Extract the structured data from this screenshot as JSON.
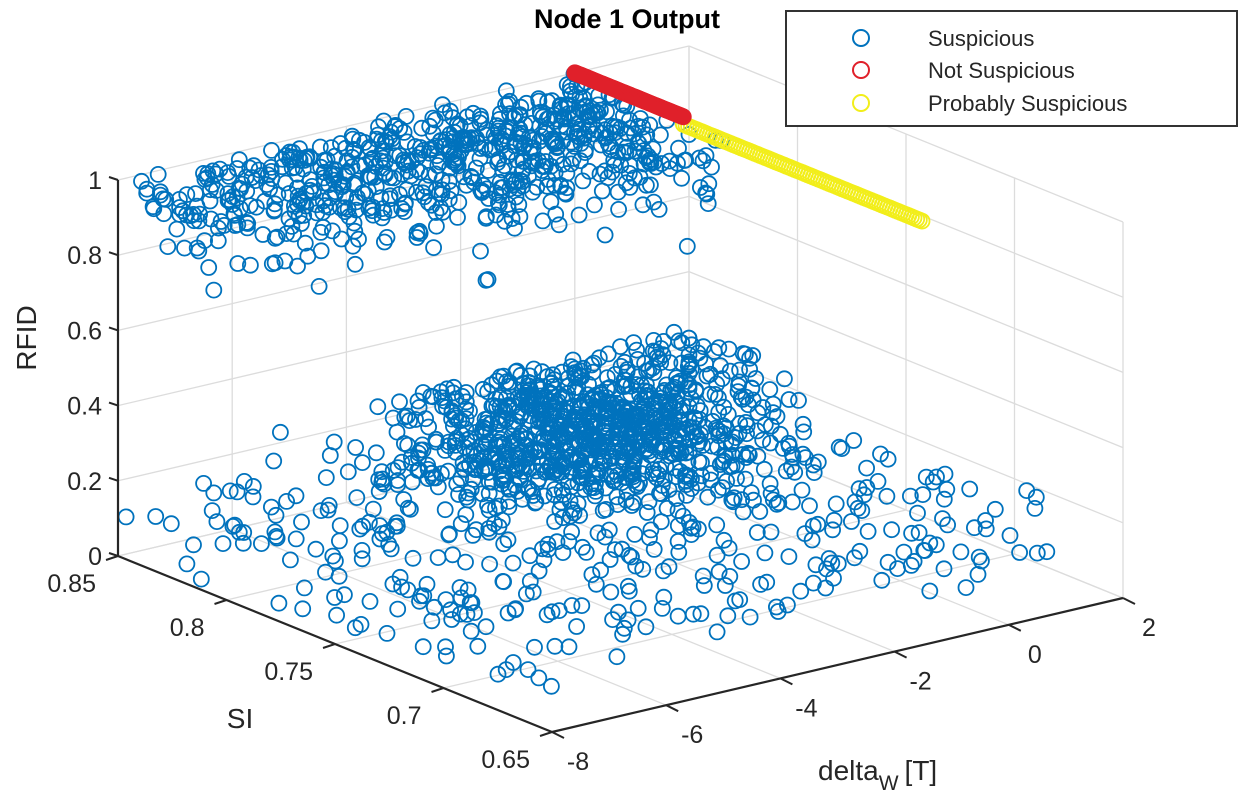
{
  "chart_data": {
    "type": "scatter3d",
    "title": "Node 1 Output",
    "xlabel": "delta",
    "xlabel_subscript": "W",
    "xlabel_unit": "[T]",
    "ylabel": "SI",
    "zlabel": "RFID",
    "xlim": [
      -8,
      2
    ],
    "ylim": [
      0.65,
      0.85
    ],
    "zlim": [
      0,
      1
    ],
    "xticks": [
      "-8",
      "-6",
      "-4",
      "-2",
      "0",
      "2"
    ],
    "yticks": [
      "0.85",
      "0.8",
      "0.75",
      "0.7",
      "0.65"
    ],
    "zticks": [
      "0",
      "0.2",
      "0.4",
      "0.6",
      "0.8",
      "1"
    ],
    "grid": true,
    "legend_position": "top-right",
    "legend": [
      {
        "label": "Suspicious",
        "color": "#0072BD"
      },
      {
        "label": "Not Suspicious",
        "color": "#E0202A"
      },
      {
        "label": "Probably Suspicious",
        "color": "#F2EE1A"
      }
    ],
    "series": [
      {
        "name": "Suspicious",
        "color": "#0072BD",
        "clusters": [
          {
            "desc": "upper band",
            "x_range": [
              -8,
              0
            ],
            "y_range": [
              0.72,
              0.85
            ],
            "z_range": [
              0.72,
              1.0
            ],
            "count": 700
          },
          {
            "desc": "lower dense",
            "x_center": -0.5,
            "y_center": 0.83,
            "x_spread": 1.4,
            "y_spread": 0.025,
            "z_range": [
              0,
              0.25
            ],
            "count": 900
          },
          {
            "desc": "lower sparse",
            "x_range": [
              -8,
              2
            ],
            "y_range": [
              0.68,
              0.85
            ],
            "z_range": [
              0,
              0.2
            ],
            "count": 420
          }
        ]
      },
      {
        "name": "Not Suspicious",
        "color": "#E0202A",
        "line": {
          "x": 0,
          "y_from": 0.85,
          "y_to": 0.8,
          "z": 1
        }
      },
      {
        "name": "Probably Suspicious",
        "color": "#F2EE1A",
        "line": {
          "x": 0,
          "y_from": 0.8,
          "y_to": 0.69,
          "z": 0.98
        }
      }
    ]
  }
}
